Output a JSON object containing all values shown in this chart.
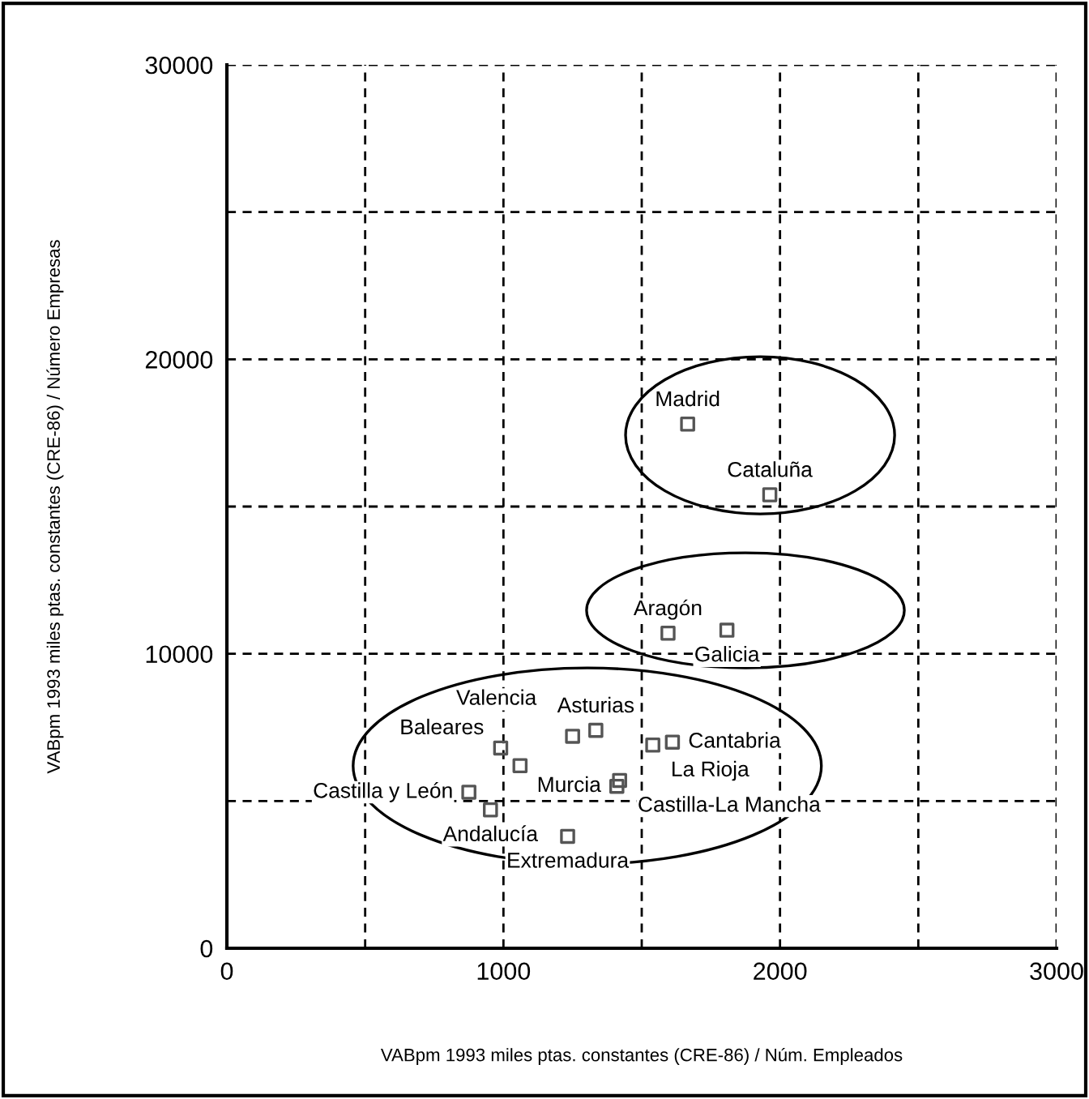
{
  "chart_data": {
    "type": "scatter",
    "xlabel": "VABpm 1993 miles ptas. constantes (CRE-86) / Núm. Empleados",
    "ylabel": "VABpm 1993 miles ptas. constantes (CRE-86) / Número Empresas",
    "x": [
      1666,
      1963,
      1595,
      1808,
      1334,
      1250,
      1611,
      1540,
      1060,
      1420,
      1410,
      875,
      953,
      1232,
      990
    ],
    "series": [
      {
        "color": "#555555",
        "values": [
          17800,
          15400,
          10700,
          10800,
          7400,
          7200,
          7000,
          6900,
          6200,
          5700,
          5500,
          5300,
          4700,
          3800,
          6800
        ]
      }
    ],
    "annotations": [
      {
        "text": "Madrid",
        "x": 1666,
        "y": 17800
      },
      {
        "text": "Cataluña",
        "x": 1963,
        "y": 15400
      },
      {
        "text": "Aragón",
        "x": 1595,
        "y": 10700
      },
      {
        "text": "Galicia",
        "x": 1808,
        "y": 10800
      },
      {
        "text": "Asturias",
        "x": 1334,
        "y": 7400
      },
      {
        "text": "Valencia",
        "x": 1250,
        "y": 7200
      },
      {
        "text": "Cantabria",
        "x": 1611,
        "y": 7000
      },
      {
        "text": "La Rioja",
        "x": 1540,
        "y": 6900
      },
      {
        "text": "Baleares",
        "x": 1060,
        "y": 6200
      },
      {
        "text": "Castilla-La Mancha",
        "x": 1420,
        "y": 5700
      },
      {
        "text": "Murcia",
        "x": 1410,
        "y": 5500
      },
      {
        "text": "Castilla y León",
        "x": 875,
        "y": 5300
      },
      {
        "text": "Andalucía",
        "x": 953,
        "y": 4700
      },
      {
        "text": "Extremadura",
        "x": 1232,
        "y": 3800
      }
    ],
    "marker": "square",
    "grid": true,
    "xlim": [
      0,
      3000
    ],
    "ylim": [
      0,
      30000
    ],
    "xticks": [
      0,
      {
        "value": 500,
        "label": null
      },
      1000,
      {
        "value": 1500,
        "label": null
      },
      2000,
      {
        "value": 2500,
        "label": null
      },
      3000
    ],
    "yticks": [
      0,
      {
        "value": 5000,
        "label": null
      },
      10000,
      {
        "value": 15000,
        "label": null
      },
      20000,
      {
        "value": 25000,
        "label": null
      },
      30000
    ]
  }
}
